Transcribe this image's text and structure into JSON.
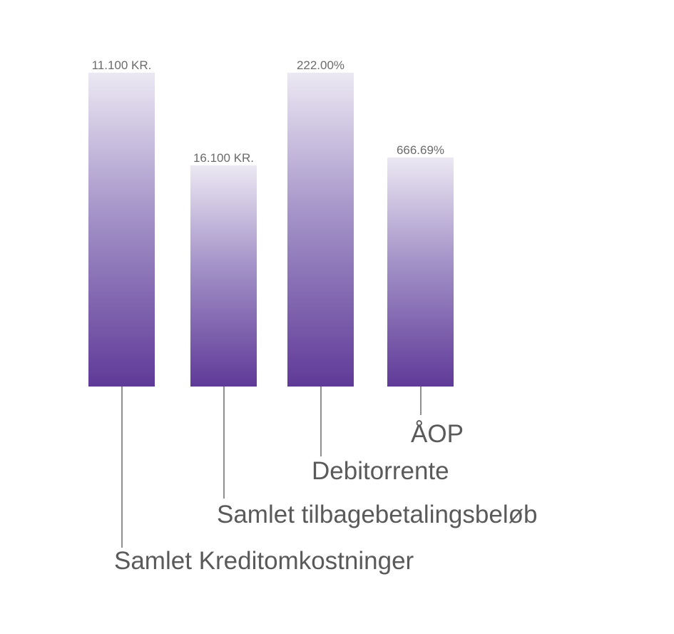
{
  "chart_data": {
    "type": "bar",
    "categories": [
      "Samlet Kreditomkostninger",
      "Samlet tilbagebetalingsbeløb",
      "Debitorrente",
      "ÅOP"
    ],
    "value_labels": [
      "11.100 KR.",
      "16.100 KR.",
      "222.00%",
      "666.69%"
    ],
    "values": [
      11100,
      16100,
      222.0,
      666.69
    ],
    "relative_heights": [
      1.0,
      0.705,
      1.0,
      0.73
    ],
    "colors": {
      "bar_top": "#ece8f3",
      "bar_middle": "#a493c8",
      "bar_bottom": "#5f3a98",
      "leader_line": "#6b6b6b",
      "value_text": "#6b6b6b",
      "category_text": "#5a5a5a"
    }
  }
}
